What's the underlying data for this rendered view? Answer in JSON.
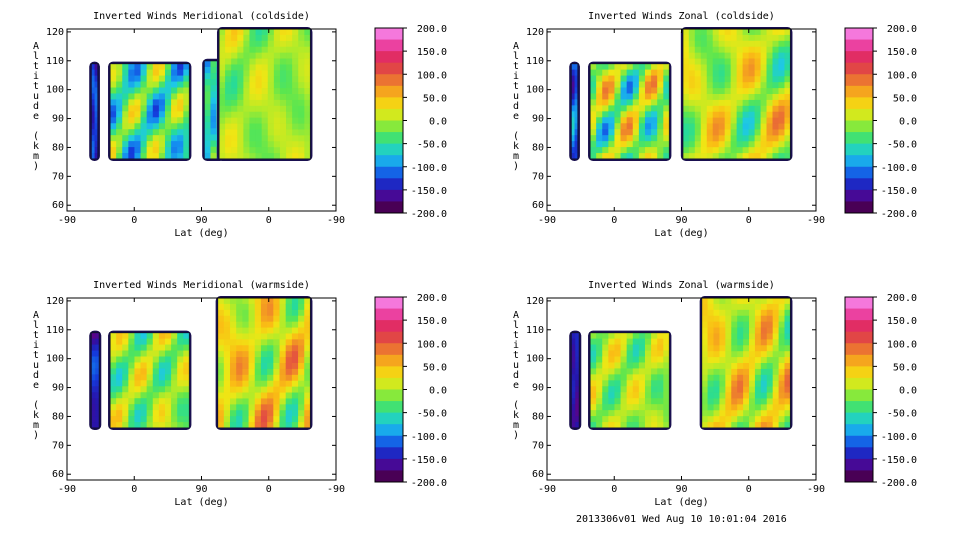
{
  "chart_data": [
    {
      "type": "heatmap",
      "title": "Inverted Winds Meridional (coldside)",
      "xlabel": "Lat (deg)",
      "ylabel": "Altitude (km)",
      "x_ticks": [
        "-90",
        "0",
        "90",
        "0",
        "-90"
      ],
      "y_ticks": [
        "60",
        "70",
        "80",
        "90",
        "100",
        "110",
        "120"
      ],
      "ylim": [
        58,
        121
      ],
      "colorbar": {
        "min": -200,
        "max": 200,
        "ticks": [
          "200.0",
          "150.0",
          "100.0",
          "50.0",
          "0.0",
          "-50.0",
          "-100.0",
          "-150.0",
          "-200.0"
        ]
      },
      "regions": [
        {
          "x0": 0.09,
          "x1": 0.115,
          "y0": 76,
          "y1": 109,
          "base": -130,
          "amp": 40
        },
        {
          "x0": 0.16,
          "x1": 0.455,
          "y0": 76,
          "y1": 109,
          "base": -40,
          "amp": 60
        },
        {
          "x0": 0.51,
          "x1": 0.58,
          "y0": 76,
          "y1": 110,
          "base": -60,
          "amp": 50
        },
        {
          "x0": 0.565,
          "x1": 0.905,
          "y0": 76,
          "y1": 121,
          "base": -5,
          "amp": 35
        }
      ]
    },
    {
      "type": "heatmap",
      "title": "Inverted Winds Zonal (coldside)",
      "xlabel": "Lat (deg)",
      "ylabel": "Altitude (km)",
      "x_ticks": [
        "-90",
        "0",
        "90",
        "0",
        "-90"
      ],
      "y_ticks": [
        "60",
        "70",
        "80",
        "90",
        "100",
        "110",
        "120"
      ],
      "ylim": [
        58,
        121
      ],
      "colorbar": {
        "min": -200,
        "max": 200,
        "ticks": [
          "200.0",
          "150.0",
          "100.0",
          "50.0",
          "0.0",
          "-50.0",
          "-100.0",
          "-150.0",
          "-200.0"
        ]
      },
      "regions": [
        {
          "x0": 0.09,
          "x1": 0.115,
          "y0": 76,
          "y1": 109,
          "base": -110,
          "amp": 40
        },
        {
          "x0": 0.16,
          "x1": 0.455,
          "y0": 76,
          "y1": 109,
          "base": -10,
          "amp": 70
        },
        {
          "x0": 0.505,
          "x1": 0.905,
          "y0": 76,
          "y1": 121,
          "base": 5,
          "amp": 60
        }
      ]
    },
    {
      "type": "heatmap",
      "title": "Inverted Winds Meridional (warmside)",
      "xlabel": "Lat (deg)",
      "ylabel": "Altitude (km)",
      "x_ticks": [
        "-90",
        "0",
        "90",
        "0",
        "-90"
      ],
      "y_ticks": [
        "60",
        "70",
        "80",
        "90",
        "100",
        "110",
        "120"
      ],
      "ylim": [
        58,
        121
      ],
      "colorbar": {
        "min": -200,
        "max": 200,
        "ticks": [
          "200.0",
          "150.0",
          "100.0",
          "50.0",
          "0.0",
          "-50.0",
          "-100.0",
          "-150.0",
          "-200.0"
        ]
      },
      "regions": [
        {
          "x0": 0.09,
          "x1": 0.12,
          "y0": 76,
          "y1": 109,
          "base": -140,
          "amp": 30
        },
        {
          "x0": 0.16,
          "x1": 0.455,
          "y0": 76,
          "y1": 109,
          "base": -10,
          "amp": 45
        },
        {
          "x0": 0.56,
          "x1": 0.905,
          "y0": 76,
          "y1": 121,
          "base": 20,
          "amp": 60
        }
      ]
    },
    {
      "type": "heatmap",
      "title": "Inverted Winds Zonal (warmside)",
      "xlabel": "Lat (deg)",
      "ylabel": "Altitude (km)",
      "x_ticks": [
        "-90",
        "0",
        "90",
        "0",
        "-90"
      ],
      "y_ticks": [
        "60",
        "70",
        "80",
        "90",
        "100",
        "110",
        "120"
      ],
      "ylim": [
        58,
        121
      ],
      "colorbar": {
        "min": -200,
        "max": 200,
        "ticks": [
          "200.0",
          "150.0",
          "100.0",
          "50.0",
          "0.0",
          "-50.0",
          "-100.0",
          "-150.0",
          "-200.0"
        ]
      },
      "regions": [
        {
          "x0": 0.09,
          "x1": 0.12,
          "y0": 76,
          "y1": 109,
          "base": -150,
          "amp": 25
        },
        {
          "x0": 0.16,
          "x1": 0.455,
          "y0": 76,
          "y1": 109,
          "base": -5,
          "amp": 40
        },
        {
          "x0": 0.575,
          "x1": 0.905,
          "y0": 76,
          "y1": 121,
          "base": 15,
          "amp": 55
        }
      ]
    }
  ],
  "footer": "2013306v01 Wed Aug 10 10:01:04 2016"
}
